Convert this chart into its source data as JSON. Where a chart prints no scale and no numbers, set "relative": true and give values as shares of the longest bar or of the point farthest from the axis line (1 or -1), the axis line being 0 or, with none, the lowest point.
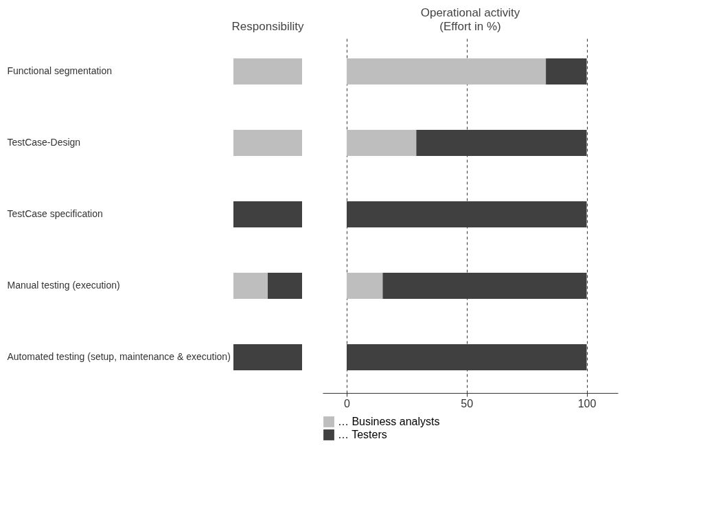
{
  "chart_data": [
    {
      "type": "bar",
      "title": "Responsibility",
      "orientation": "horizontal",
      "stacked": true,
      "relative": true,
      "categories": [
        "Functional segmentation",
        "TestCase-Design",
        "TestCase specification",
        "Manual testing (execution)",
        "Automated testing (setup, maintenance & execution)"
      ],
      "series": [
        {
          "color": "#bebebe",
          "values": [
            1,
            1,
            0,
            0.5,
            0
          ]
        },
        {
          "color": "#404040",
          "values": [
            0,
            0,
            1,
            0.5,
            1
          ]
        }
      ]
    },
    {
      "type": "bar",
      "title": "Operational activity",
      "subtitle": "(Effort in %)",
      "orientation": "horizontal",
      "stacked": true,
      "legend": "bottom",
      "grid": "x",
      "categories": [
        null,
        null,
        null,
        null,
        null
      ],
      "xlim": [
        -10,
        113
      ],
      "xticks": [
        0,
        50,
        100
      ],
      "series": [
        {
          "name": "… Business analysts",
          "color": "#bebebe",
          "values": [
            83,
            29,
            0,
            15,
            0
          ]
        },
        {
          "name": "… Testers",
          "color": "#404040",
          "values": [
            17,
            71,
            100,
            85,
            100
          ]
        }
      ]
    }
  ]
}
